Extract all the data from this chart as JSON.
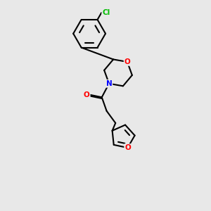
{
  "background_color": "#e8e8e8",
  "bond_color": "#000000",
  "bond_width": 1.5,
  "atom_colors": {
    "O": "#ff0000",
    "N": "#0000ff",
    "Cl": "#00bb00",
    "C": "#000000"
  },
  "figsize": [
    3.0,
    3.0
  ],
  "dpi": 100
}
